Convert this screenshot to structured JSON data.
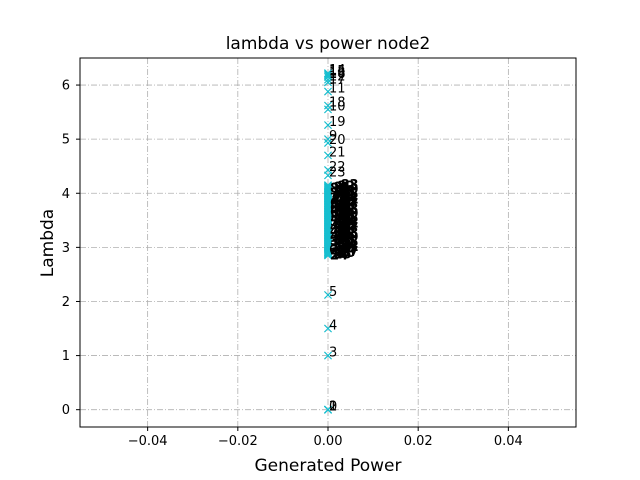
{
  "chart_data": {
    "type": "scatter",
    "title": "lambda vs power node2",
    "xlabel": "Generated Power",
    "ylabel": "Lambda",
    "xlim": [
      -0.055,
      0.055
    ],
    "ylim": [
      -0.32,
      6.5
    ],
    "xticks": [
      -0.04,
      -0.02,
      0.0,
      0.02,
      0.04
    ],
    "xtick_labels": [
      "−0.04",
      "−0.02",
      "0.00",
      "0.02",
      "0.04"
    ],
    "yticks": [
      0,
      1,
      2,
      3,
      4,
      5,
      6
    ],
    "ytick_labels": [
      "0",
      "1",
      "2",
      "3",
      "4",
      "5",
      "6"
    ],
    "grid": true,
    "marker": "x",
    "marker_color": "#17becf",
    "series": [
      {
        "points": [
          {
            "x": 0,
            "y": 0.0,
            "label": "0"
          },
          {
            "x": 0,
            "y": 0.0,
            "label": "1"
          },
          {
            "x": 0,
            "y": 0.0,
            "label": "2"
          },
          {
            "x": 0,
            "y": 1.0,
            "label": "3"
          },
          {
            "x": 0,
            "y": 1.5,
            "label": "4"
          },
          {
            "x": 0,
            "y": 2.12,
            "label": "5"
          },
          {
            "x": 0,
            "y": 2.9,
            "label": "6"
          },
          {
            "x": 0,
            "y": 4.33,
            "label": "23"
          },
          {
            "x": 0,
            "y": 4.43,
            "label": "22"
          },
          {
            "x": 0,
            "y": 4.7,
            "label": "21"
          },
          {
            "x": 0,
            "y": 4.93,
            "label": "20"
          },
          {
            "x": 0,
            "y": 5.0,
            "label": "9"
          },
          {
            "x": 0,
            "y": 5.26,
            "label": "19"
          },
          {
            "x": 0,
            "y": 5.55,
            "label": "10"
          },
          {
            "x": 0,
            "y": 5.62,
            "label": "18"
          },
          {
            "x": 0,
            "y": 5.88,
            "label": "11"
          },
          {
            "x": 0,
            "y": 6.05,
            "label": "17"
          },
          {
            "x": 0,
            "y": 6.1,
            "label": "12"
          },
          {
            "x": 0,
            "y": 6.15,
            "label": "16"
          },
          {
            "x": 0,
            "y": 6.18,
            "label": "13"
          },
          {
            "x": 0,
            "y": 6.2,
            "label": "15"
          },
          {
            "x": 0,
            "y": 6.22,
            "label": "14"
          }
        ],
        "dense_cluster": {
          "x": 0,
          "y_min": 2.85,
          "y_max": 4.15,
          "count": 100
        }
      }
    ]
  }
}
